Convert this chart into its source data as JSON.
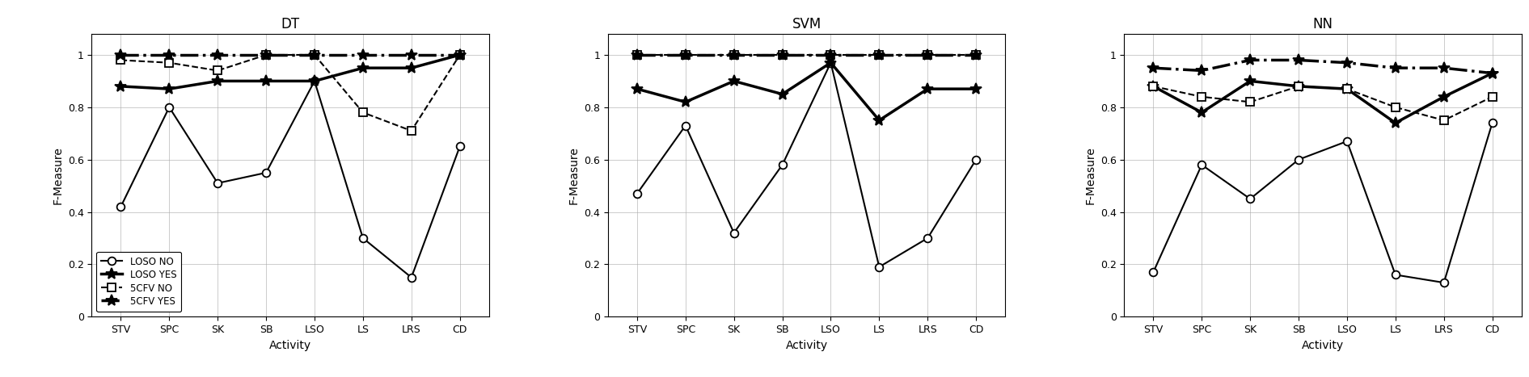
{
  "categories": [
    "STV",
    "SPC",
    "SK",
    "SB",
    "LSO",
    "LS",
    "LRS",
    "CD"
  ],
  "models": [
    "DT",
    "SVM",
    "NN"
  ],
  "series": {
    "DT": {
      "LOSO_NO": [
        0.42,
        0.8,
        0.51,
        0.55,
        0.9,
        0.3,
        0.15,
        0.65
      ],
      "LOSO_YES": [
        0.88,
        0.87,
        0.9,
        0.9,
        0.9,
        0.95,
        0.95,
        1.0
      ],
      "5CFV_NO": [
        0.98,
        0.97,
        0.94,
        1.0,
        1.0,
        0.78,
        0.71,
        1.0
      ],
      "5CFV_YES": [
        1.0,
        1.0,
        1.0,
        1.0,
        1.0,
        1.0,
        1.0,
        1.0
      ]
    },
    "SVM": {
      "LOSO_NO": [
        0.47,
        0.73,
        0.32,
        0.58,
        0.97,
        0.19,
        0.3,
        0.6
      ],
      "LOSO_YES": [
        0.87,
        0.82,
        0.9,
        0.85,
        0.97,
        0.75,
        0.87,
        0.87
      ],
      "5CFV_NO": [
        1.0,
        1.0,
        1.0,
        1.0,
        1.0,
        1.0,
        1.0,
        1.0
      ],
      "5CFV_YES": [
        1.0,
        1.0,
        1.0,
        1.0,
        1.0,
        1.0,
        1.0,
        1.0
      ]
    },
    "NN": {
      "LOSO_NO": [
        0.17,
        0.58,
        0.45,
        0.6,
        0.67,
        0.16,
        0.13,
        0.74
      ],
      "LOSO_YES": [
        0.88,
        0.78,
        0.9,
        0.88,
        0.87,
        0.74,
        0.84,
        0.93
      ],
      "5CFV_NO": [
        0.88,
        0.84,
        0.82,
        0.88,
        0.87,
        0.8,
        0.75,
        0.84
      ],
      "5CFV_YES": [
        0.95,
        0.94,
        0.98,
        0.98,
        0.97,
        0.95,
        0.95,
        0.93
      ]
    }
  },
  "legend_labels": [
    "LOSO NO",
    "LOSO YES",
    "5CFV NO",
    "5CFV YES"
  ],
  "ylabel": "F-Measure",
  "xlabel": "Activity",
  "ylim": [
    0,
    1.08
  ],
  "yticks": [
    0,
    0.2,
    0.4,
    0.6,
    0.8,
    1.0
  ],
  "line_color": "black",
  "lw_thin": 1.5,
  "lw_thick": 2.5,
  "markersize_circle": 7,
  "markersize_star": 10,
  "markersize_square": 7
}
